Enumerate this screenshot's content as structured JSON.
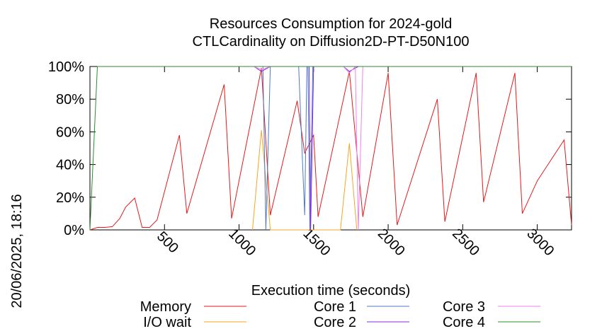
{
  "chart_data": {
    "type": "line",
    "title": "Resources Consumption for 2024-gold",
    "subtitle": "CTLCardinality on Diffusion2D-PT-D50N100",
    "xlabel": "Execution time (seconds)",
    "ylabel": "",
    "side_label": "20/06/2025, 18:16",
    "xlim": [
      0,
      3230
    ],
    "ylim": [
      0,
      100
    ],
    "xticks": [
      500,
      1000,
      1500,
      2000,
      2500,
      3000
    ],
    "yticks": [
      0,
      20,
      40,
      60,
      80,
      100
    ],
    "ytick_labels": [
      "0%",
      "20%",
      "40%",
      "60%",
      "80%",
      "100%"
    ],
    "grid": false,
    "legend_position": "bottom",
    "series": [
      {
        "name": "Memory",
        "color": "#e41a1c",
        "points": [
          [
            0,
            0
          ],
          [
            50,
            1.5
          ],
          [
            100,
            1.5
          ],
          [
            150,
            2
          ],
          [
            200,
            7
          ],
          [
            240,
            14
          ],
          [
            300,
            19.5
          ],
          [
            350,
            1.5
          ],
          [
            400,
            1.5
          ],
          [
            450,
            6
          ],
          [
            600,
            58
          ],
          [
            650,
            10
          ],
          [
            900,
            89
          ],
          [
            950,
            7
          ],
          [
            1150,
            99
          ],
          [
            1210,
            9
          ],
          [
            1390,
            79
          ],
          [
            1440,
            47
          ],
          [
            1500,
            58
          ],
          [
            1530,
            8
          ],
          [
            1740,
            97
          ],
          [
            1830,
            8
          ],
          [
            2000,
            96
          ],
          [
            2060,
            3
          ],
          [
            2330,
            80
          ],
          [
            2380,
            5
          ],
          [
            2590,
            96
          ],
          [
            2640,
            17
          ],
          [
            2850,
            96
          ],
          [
            2900,
            10
          ],
          [
            3000,
            30
          ],
          [
            3180,
            55
          ],
          [
            3230,
            3
          ]
        ]
      },
      {
        "name": "I/O wait",
        "color": "#f5a623",
        "points": [
          [
            1090,
            0
          ],
          [
            1150,
            61
          ],
          [
            1210,
            0
          ],
          [
            1400,
            0
          ],
          [
            1450,
            0
          ],
          [
            1680,
            0
          ],
          [
            1740,
            53
          ],
          [
            1790,
            0
          ]
        ]
      },
      {
        "name": "Core 1",
        "color": "#4e79c7",
        "points": [
          [
            1080,
            100
          ],
          [
            1160,
            100
          ],
          [
            1180,
            0
          ],
          [
            1210,
            100
          ],
          [
            1390,
            100
          ],
          [
            1400,
            100
          ],
          [
            1440,
            9
          ],
          [
            1455,
            100
          ],
          [
            1462,
            100
          ],
          [
            1475,
            0
          ],
          [
            1495,
            100
          ],
          [
            1700,
            100
          ],
          [
            1760,
            100
          ]
        ]
      },
      {
        "name": "Core 2",
        "color": "#8a2be2",
        "points": [
          [
            1100,
            100
          ],
          [
            1150,
            97
          ],
          [
            1210,
            100
          ],
          [
            1470,
            100
          ],
          [
            1480,
            0
          ],
          [
            1500,
            100
          ],
          [
            1700,
            100
          ],
          [
            1740,
            97
          ],
          [
            1800,
            100
          ]
        ]
      },
      {
        "name": "Core 3",
        "color": "#ee82ee",
        "points": [
          [
            1100,
            100
          ],
          [
            1150,
            98
          ],
          [
            1210,
            100
          ],
          [
            1700,
            100
          ],
          [
            1740,
            96
          ],
          [
            1780,
            100
          ],
          [
            1800,
            0
          ],
          [
            1830,
            100
          ]
        ]
      },
      {
        "name": "Core 4",
        "color": "#2e8b2e",
        "points": [
          [
            0,
            0
          ],
          [
            50,
            100
          ],
          [
            3230,
            100
          ]
        ]
      }
    ]
  }
}
